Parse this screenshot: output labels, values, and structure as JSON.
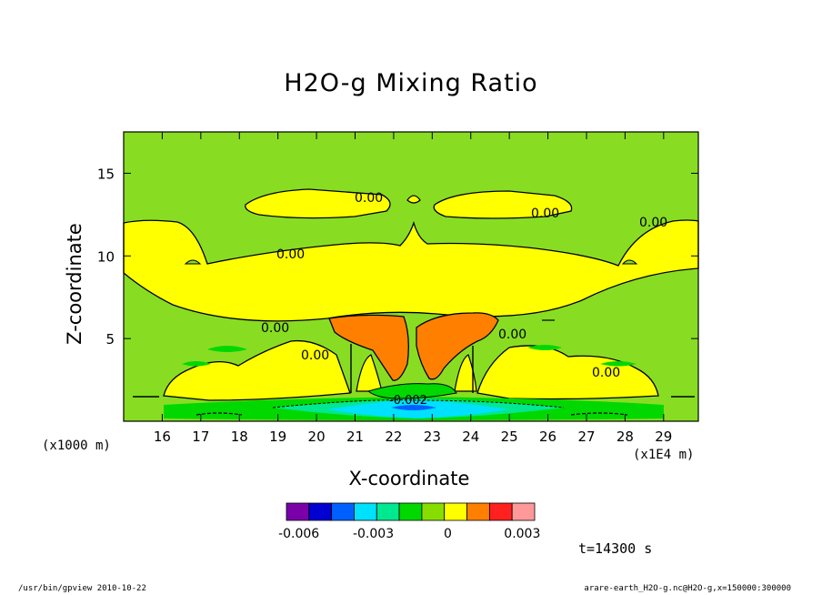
{
  "chart_data": {
    "type": "heatmap",
    "title": "H2O-g Mixing Ratio",
    "xlabel": "X-coordinate",
    "ylabel": "Z-coordinate",
    "x_unit_left": "(x1000 m)",
    "x_unit_right": "(x1E4 m)",
    "x_ticks": [
      "16",
      "17",
      "18",
      "19",
      "20",
      "21",
      "22",
      "23",
      "24",
      "25",
      "26",
      "27",
      "28",
      "29"
    ],
    "y_ticks": [
      "5",
      "10",
      "15"
    ],
    "xlim": [
      15.0,
      29.9
    ],
    "ylim": [
      0,
      17.5
    ],
    "contour_labels": [
      "0.00",
      "0.00",
      "0.00",
      "0.00",
      "0.00",
      "0.00",
      "0.00",
      "0.00",
      "-0.002"
    ],
    "colorbar": {
      "colors": [
        "#7a00a8",
        "#0000d0",
        "#0060ff",
        "#00e0ff",
        "#00e890",
        "#00d800",
        "#88dd00",
        "#ffff00",
        "#ff8000",
        "#ff2020",
        "#ff9999"
      ],
      "tick_labels": [
        "-0.006",
        "-0.003",
        "0",
        "0.003"
      ],
      "tick_values": [
        -0.006,
        -0.003,
        0,
        0.003
      ]
    },
    "background_color": "#88dd22",
    "positive_color": "#ffff00",
    "plume_color": "#ff8000",
    "time_label": "t=14300 s",
    "footer_left": "/usr/bin/gpview   2010-10-22",
    "footer_right": "arare-earth_H2O-g.nc@H2O-g,x=150000:300000"
  }
}
